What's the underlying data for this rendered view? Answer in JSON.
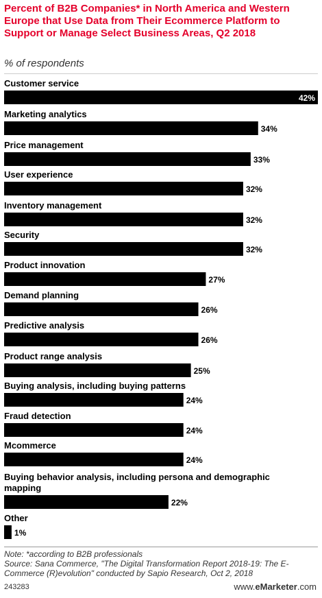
{
  "header": {
    "title": "Percent of B2B Companies* in North America and Western Europe that Use Data from Their Ecommerce Platform to Support or Manage Select Business Areas, Q2 2018",
    "subtitle": "% of respondents"
  },
  "footer": {
    "note": "Note: *according to B2B professionals",
    "source": "Source: Sana Commerce, \"The Digital Transformation Report 2018-19: The E-Commerce (R)evolution\" conducted by Sapio Research, Oct 2, 2018",
    "chart_id": "243283",
    "brand_prefix": "www.",
    "brand_name": "eMarketer",
    "brand_suffix": ".com"
  },
  "colors": {
    "title": "#e4002b",
    "bar": "#000000",
    "value_inside": "#ffffff",
    "value_outside": "#000000"
  },
  "chart_data": {
    "type": "bar",
    "orientation": "horizontal",
    "title": "Percent of B2B Companies* in North America and Western Europe that Use Data from Their Ecommerce Platform to Support or Manage Select Business Areas, Q2 2018",
    "subtitle": "% of respondents",
    "unit": "%",
    "xlim": [
      0,
      42
    ],
    "grid": false,
    "legend": "none",
    "categories": [
      [
        "Customer service"
      ],
      [
        "Marketing analytics"
      ],
      [
        "Price management"
      ],
      [
        "User experience"
      ],
      [
        "Inventory management"
      ],
      [
        "Security"
      ],
      [
        "Product innovation"
      ],
      [
        "Demand planning"
      ],
      [
        "Predictive analysis"
      ],
      [
        "Product range analysis"
      ],
      [
        "Buying analysis, including buying patterns"
      ],
      [
        "Fraud detection"
      ],
      [
        "Mcommerce"
      ],
      [
        "Buying behavior analysis, including persona and demographic",
        "mapping"
      ],
      [
        "Other"
      ]
    ],
    "values": [
      42,
      34,
      33,
      32,
      32,
      32,
      27,
      26,
      26,
      25,
      24,
      24,
      24,
      22,
      1
    ],
    "value_labels": [
      "42%",
      "34%",
      "33%",
      "32%",
      "32%",
      "32%",
      "27%",
      "26%",
      "26%",
      "25%",
      "24%",
      "24%",
      "24%",
      "22%",
      "1%"
    ]
  }
}
